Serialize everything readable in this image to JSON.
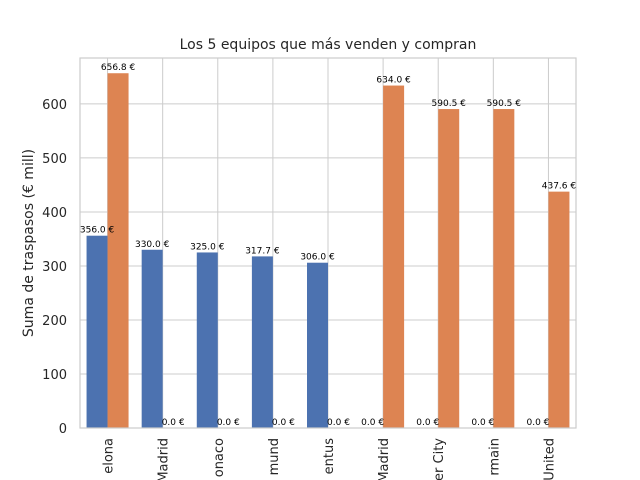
{
  "chart_data": {
    "type": "bar",
    "title": "Los 5 equipos que más venden y compran",
    "ylabel": "Suma de traspasos (€ mill)",
    "xlabel": "",
    "ylim": [
      0,
      685
    ],
    "yticks": [
      0,
      100,
      200,
      300,
      400,
      500,
      600
    ],
    "grid": true,
    "legend": "none",
    "categories": [
      "elona",
      "Madrid",
      "onaco",
      "mund",
      "entus",
      "Madrid",
      "er City",
      "rmain",
      "United"
    ],
    "series": [
      {
        "color": "#4c72b0",
        "values": [
          356.0,
          330.0,
          325.0,
          317.7,
          306.0,
          0.0,
          0.0,
          0.0,
          0.0
        ],
        "labels": [
          "356.0 €",
          "330.0 €",
          "325.0 €",
          "317.7 €",
          "306.0 €",
          "0.0 €",
          "0.0 €",
          "0.0 €",
          "0.0 €"
        ]
      },
      {
        "color": "#dd8452",
        "values": [
          656.8,
          0.0,
          0.0,
          0.0,
          0.0,
          634.0,
          590.5,
          590.5,
          437.6
        ],
        "labels": [
          "656.8 €",
          "0.0 €",
          "0.0 €",
          "0.0 €",
          "0.0 €",
          "634.0 €",
          "590.5 €",
          "590.5 €",
          "437.6 €"
        ]
      }
    ]
  }
}
